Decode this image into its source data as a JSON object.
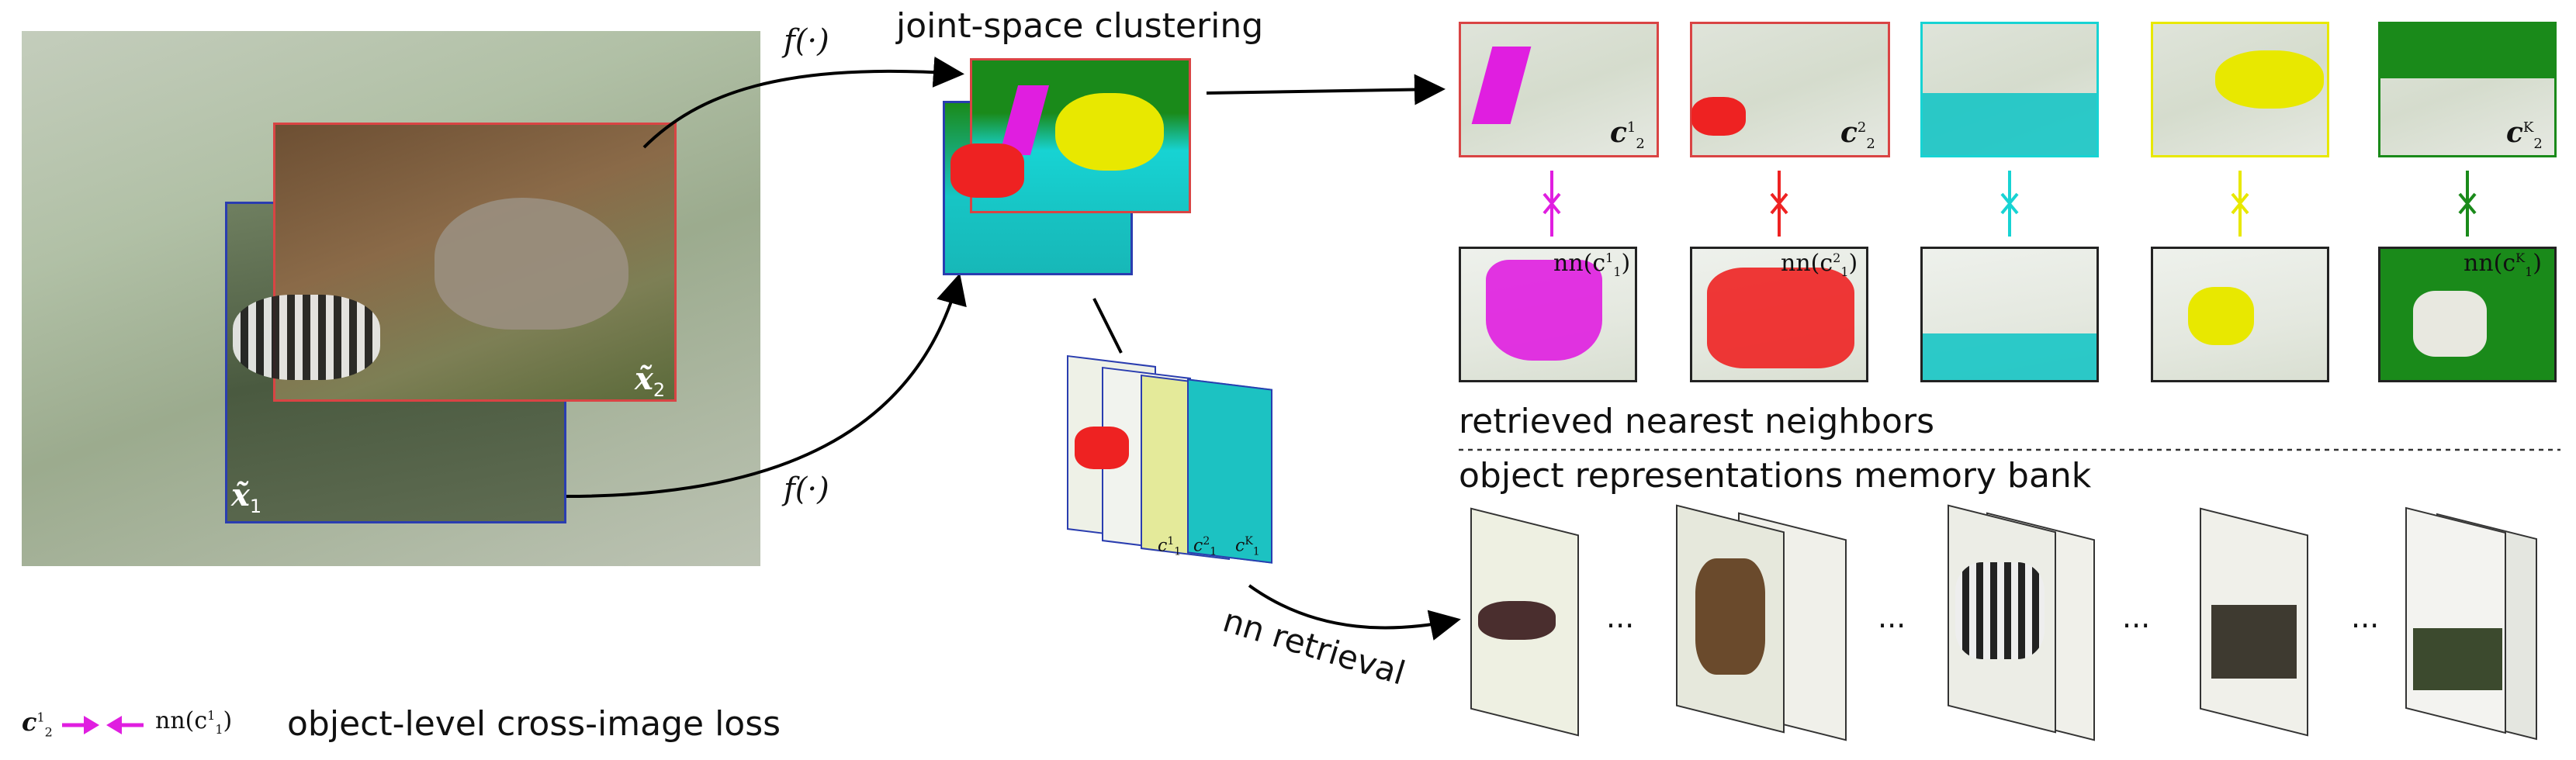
{
  "labels": {
    "f_top": "f(·)",
    "f_bottom": "f(·)",
    "joint_clustering": "joint-space clustering",
    "x1": "x̃",
    "x1_sub": "1",
    "x2": "x̃",
    "x2_sub": "2",
    "retrieved": "retrieved nearest neighbors",
    "memory_bank": "object representations memory bank",
    "nn_retrieval": "nn retrieval",
    "legend_left": "c",
    "legend_left_sup": "1",
    "legend_left_sub": "2",
    "legend_right": "nn(c",
    "legend_right_sup": "1",
    "legend_right_sub": "1",
    "legend_close": ")",
    "legend_text": "object-level cross-image loss",
    "dots": "···"
  },
  "top_cluster_labels": [
    {
      "base": "c",
      "sup": "1",
      "sub": "2"
    },
    {
      "base": "c",
      "sup": "2",
      "sub": "2"
    },
    {
      "base": "",
      "sup": "",
      "sub": ""
    },
    {
      "base": "",
      "sup": "",
      "sub": ""
    },
    {
      "base": "c",
      "sup": "K",
      "sub": "2"
    }
  ],
  "nn_labels": [
    {
      "text": "nn(c",
      "sup": "1",
      "sub": "1",
      "close": ")"
    },
    {
      "text": "nn(c",
      "sup": "2",
      "sub": "1",
      "close": ")"
    },
    {
      "text": "",
      "sup": "",
      "sub": "",
      "close": ""
    },
    {
      "text": "",
      "sup": "",
      "sub": "",
      "close": ""
    },
    {
      "text": "nn(c",
      "sup": "K",
      "sub": "1",
      "close": ")"
    }
  ],
  "stack_labels": [
    {
      "base": "c",
      "sup": "1",
      "sub": "1"
    },
    {
      "base": "c",
      "sup": "2",
      "sub": "1"
    },
    {
      "base": "c",
      "sup": "K",
      "sub": "1"
    }
  ],
  "colors": {
    "magenta": "#e01ee0",
    "red": "#ee2222",
    "cyan": "#17d3d3",
    "yellow": "#e8e800",
    "green": "#1a8a1a",
    "red_frame": "#d94444",
    "blue_frame": "#2a3db0"
  }
}
